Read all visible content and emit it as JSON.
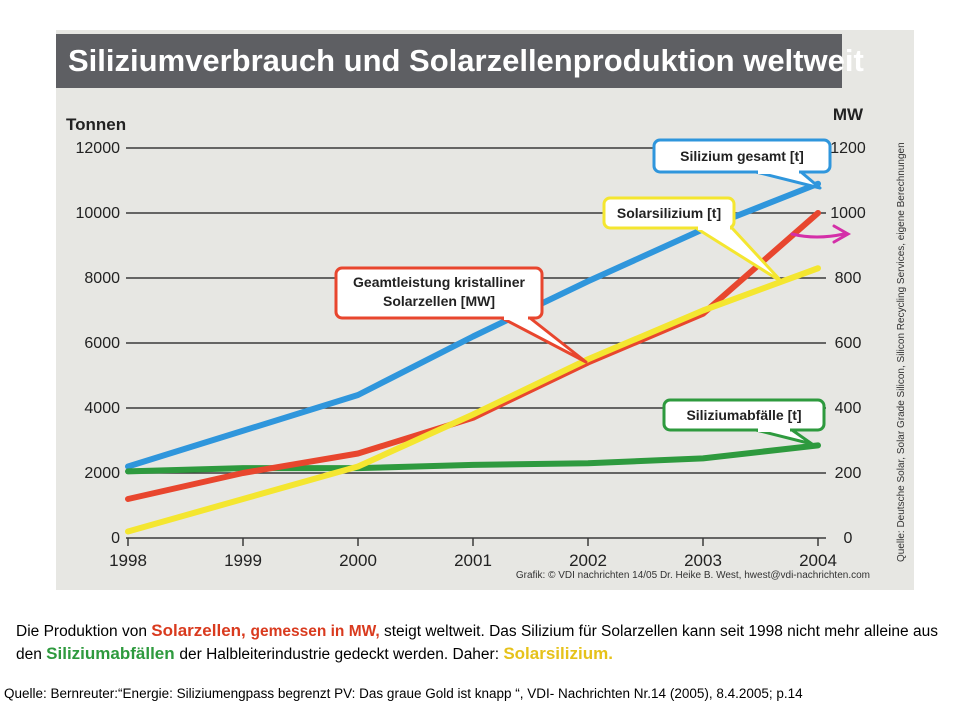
{
  "chart_data": {
    "type": "line",
    "title": "Siliziumverbrauch und Solarzellenproduktion weltweit",
    "ylabel_left": "Tonnen",
    "ylabel_right": "MW",
    "x": [
      "1998",
      "1999",
      "2000",
      "2001",
      "2002",
      "2003",
      "2004"
    ],
    "left_ticks": [
      "0",
      "2000",
      "4000",
      "6000",
      "8000",
      "10000",
      "12000"
    ],
    "right_ticks": [
      "0",
      "200",
      "400",
      "600",
      "800",
      "1000",
      "1200"
    ],
    "ylim_left": [
      0,
      12000
    ],
    "ylim_right": [
      0,
      1200
    ],
    "grid": true,
    "series": [
      {
        "name": "Silizium gesamt [t]",
        "axis": "left",
        "color": "#2f96dc",
        "values": [
          2200,
          3300,
          4400,
          6200,
          7900,
          9500,
          10900
        ]
      },
      {
        "name": "Solarsilizium [t]",
        "axis": "left",
        "color": "#f4e630",
        "values": [
          200,
          1200,
          2200,
          3800,
          5500,
          7000,
          8300
        ]
      },
      {
        "name": "Geamtleistung kristalliner Solarzellen [MW]",
        "axis": "right",
        "color": "#e8462e",
        "values": [
          120,
          200,
          260,
          370,
          540,
          690,
          1000
        ]
      },
      {
        "name": "Siliziumabfälle [t]",
        "axis": "left",
        "color": "#2e9a3e",
        "values": [
          2050,
          2150,
          2150,
          2250,
          2300,
          2450,
          2850
        ]
      }
    ],
    "callouts": [
      {
        "lines": [
          "Silizium gesamt [t]"
        ],
        "color": "#2f96dc"
      },
      {
        "lines": [
          "Solarsilizium [t]"
        ],
        "color": "#f4e630"
      },
      {
        "lines": [
          "Geamtleistung kristalliner",
          "Solarzellen [MW]"
        ],
        "color": "#e8462e"
      },
      {
        "lines": [
          "Siliziumabfälle [t]"
        ],
        "color": "#2e9a3e"
      }
    ],
    "credit": "Grafik: © VDI nachrichten 14/05 Dr. Heike B. West, hwest@vdi-nachrichten.com",
    "vertical_source": "Quelle: Deutsche Solar, Solar Grade Silicon, Silicon Recycling Services, eigene Berechnungen",
    "arrow_color": "#d42fa8"
  },
  "caption": {
    "p1": "Die Produktion von ",
    "p2": "Solarzellen, ",
    "p3": "gemessen in MW, ",
    "p4": "steigt weltweit. Das Silizium für Solarzellen kann seit 1998 nicht mehr alleine aus den ",
    "p5": "Siliziumabfällen ",
    "p6": "der Halbleiterindustrie gedeckt werden. Daher: ",
    "p7": "Solarsilizium."
  },
  "quote": "Quelle: Bernreuter:“Energie: Siliziumengpass begrenzt PV:  Das graue Gold ist knapp “,   VDI- Nachrichten Nr.14 (2005), 8.4.2005; p.14"
}
